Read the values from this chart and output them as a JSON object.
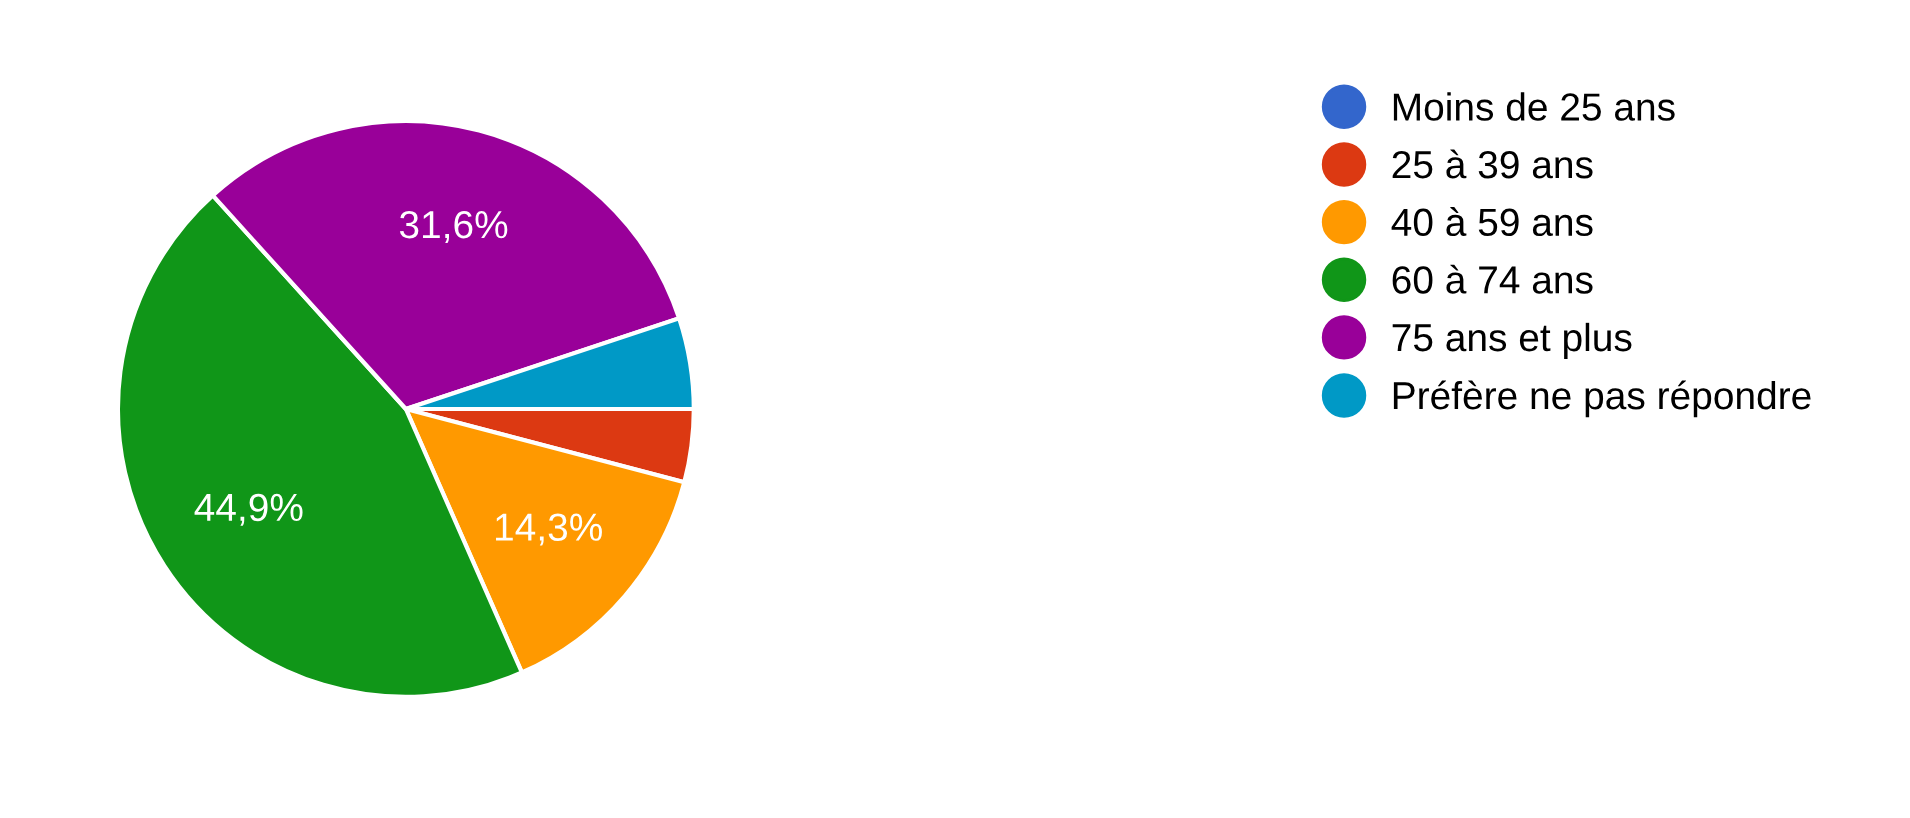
{
  "chart_data": {
    "type": "pie",
    "categories": [
      "Moins de 25 ans",
      "25 à 39 ans",
      "40 à 59 ans",
      "60 à 74 ans",
      "75 ans et plus",
      "Préfère ne pas répondre"
    ],
    "values": [
      0,
      4.1,
      14.3,
      44.9,
      31.6,
      5.1
    ],
    "colors": [
      "#3366cc",
      "#dc3912",
      "#ff9900",
      "#109618",
      "#990099",
      "#0099c6"
    ],
    "value_labels": [
      null,
      null,
      "14,3%",
      "44,9%",
      "31,6%",
      null
    ],
    "legend": "right"
  }
}
